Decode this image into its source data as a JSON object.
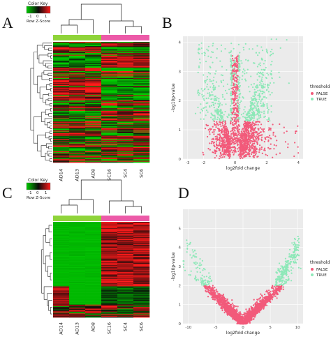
{
  "panels": {
    "A": {
      "letter": "A"
    },
    "B": {
      "letter": "B"
    },
    "C": {
      "letter": "C"
    },
    "D": {
      "letter": "D"
    }
  },
  "colors": {
    "green": "#00cc00",
    "black": "#0a0a0a",
    "red": "#ff1a1a",
    "group_AD": "#8fd43a",
    "group_SC": "#ec5aa8",
    "false_pt": "#f25a7a",
    "true_pt": "#8de8b8",
    "plot_bg": "#ebebeb"
  },
  "chart_data": [
    {
      "panel": "A",
      "type": "heatmap",
      "color_key": {
        "title": "Color Key",
        "ticks": [
          "-1",
          "0",
          "1"
        ],
        "label": "Row Z-Score"
      },
      "columns": [
        "AD14",
        "AD13",
        "AD8",
        "SC16",
        "SC4",
        "SC6"
      ],
      "groups": [
        {
          "name": "AD",
          "columns": [
            "AD14",
            "AD13",
            "AD8"
          ]
        },
        {
          "name": "SC",
          "columns": [
            "SC16",
            "SC4",
            "SC6"
          ]
        }
      ]
    },
    {
      "panel": "B",
      "type": "scatter",
      "xlabel": "log2fold change",
      "ylabel": "-log10p-value",
      "xticks": [
        "-3",
        "-2",
        "0",
        "2",
        "4"
      ],
      "yticks": [
        "0",
        "1",
        "2",
        "3",
        "4"
      ],
      "xlim": [
        -3.3,
        4.3
      ],
      "ylim": [
        0,
        4.2
      ],
      "legend": {
        "title": "threshold",
        "entries": [
          "FALSE",
          "TRUE"
        ],
        "placement": "right"
      }
    },
    {
      "panel": "C",
      "type": "heatmap",
      "color_key": {
        "title": "Color Key",
        "ticks": [
          "-1",
          "0",
          "1"
        ],
        "label": "Row Z-Score"
      },
      "columns": [
        "AD14",
        "AD13",
        "AD8",
        "SC16",
        "SC4",
        "SC6"
      ],
      "groups": [
        {
          "name": "AD",
          "columns": [
            "AD14",
            "AD13",
            "AD8"
          ]
        },
        {
          "name": "SC",
          "columns": [
            "SC16",
            "SC4",
            "SC6"
          ]
        }
      ]
    },
    {
      "panel": "D",
      "type": "scatter",
      "xlabel": "log2fold change",
      "ylabel": "-log10p-value",
      "xticks": [
        "-10",
        "-5",
        "0",
        "5",
        "10"
      ],
      "yticks": [
        "0",
        "1",
        "2",
        "3",
        "4",
        "5"
      ],
      "xlim": [
        -11,
        11
      ],
      "ylim": [
        0,
        6
      ],
      "legend": {
        "title": "threshold",
        "entries": [
          "FALSE",
          "TRUE"
        ],
        "placement": "right"
      }
    }
  ]
}
